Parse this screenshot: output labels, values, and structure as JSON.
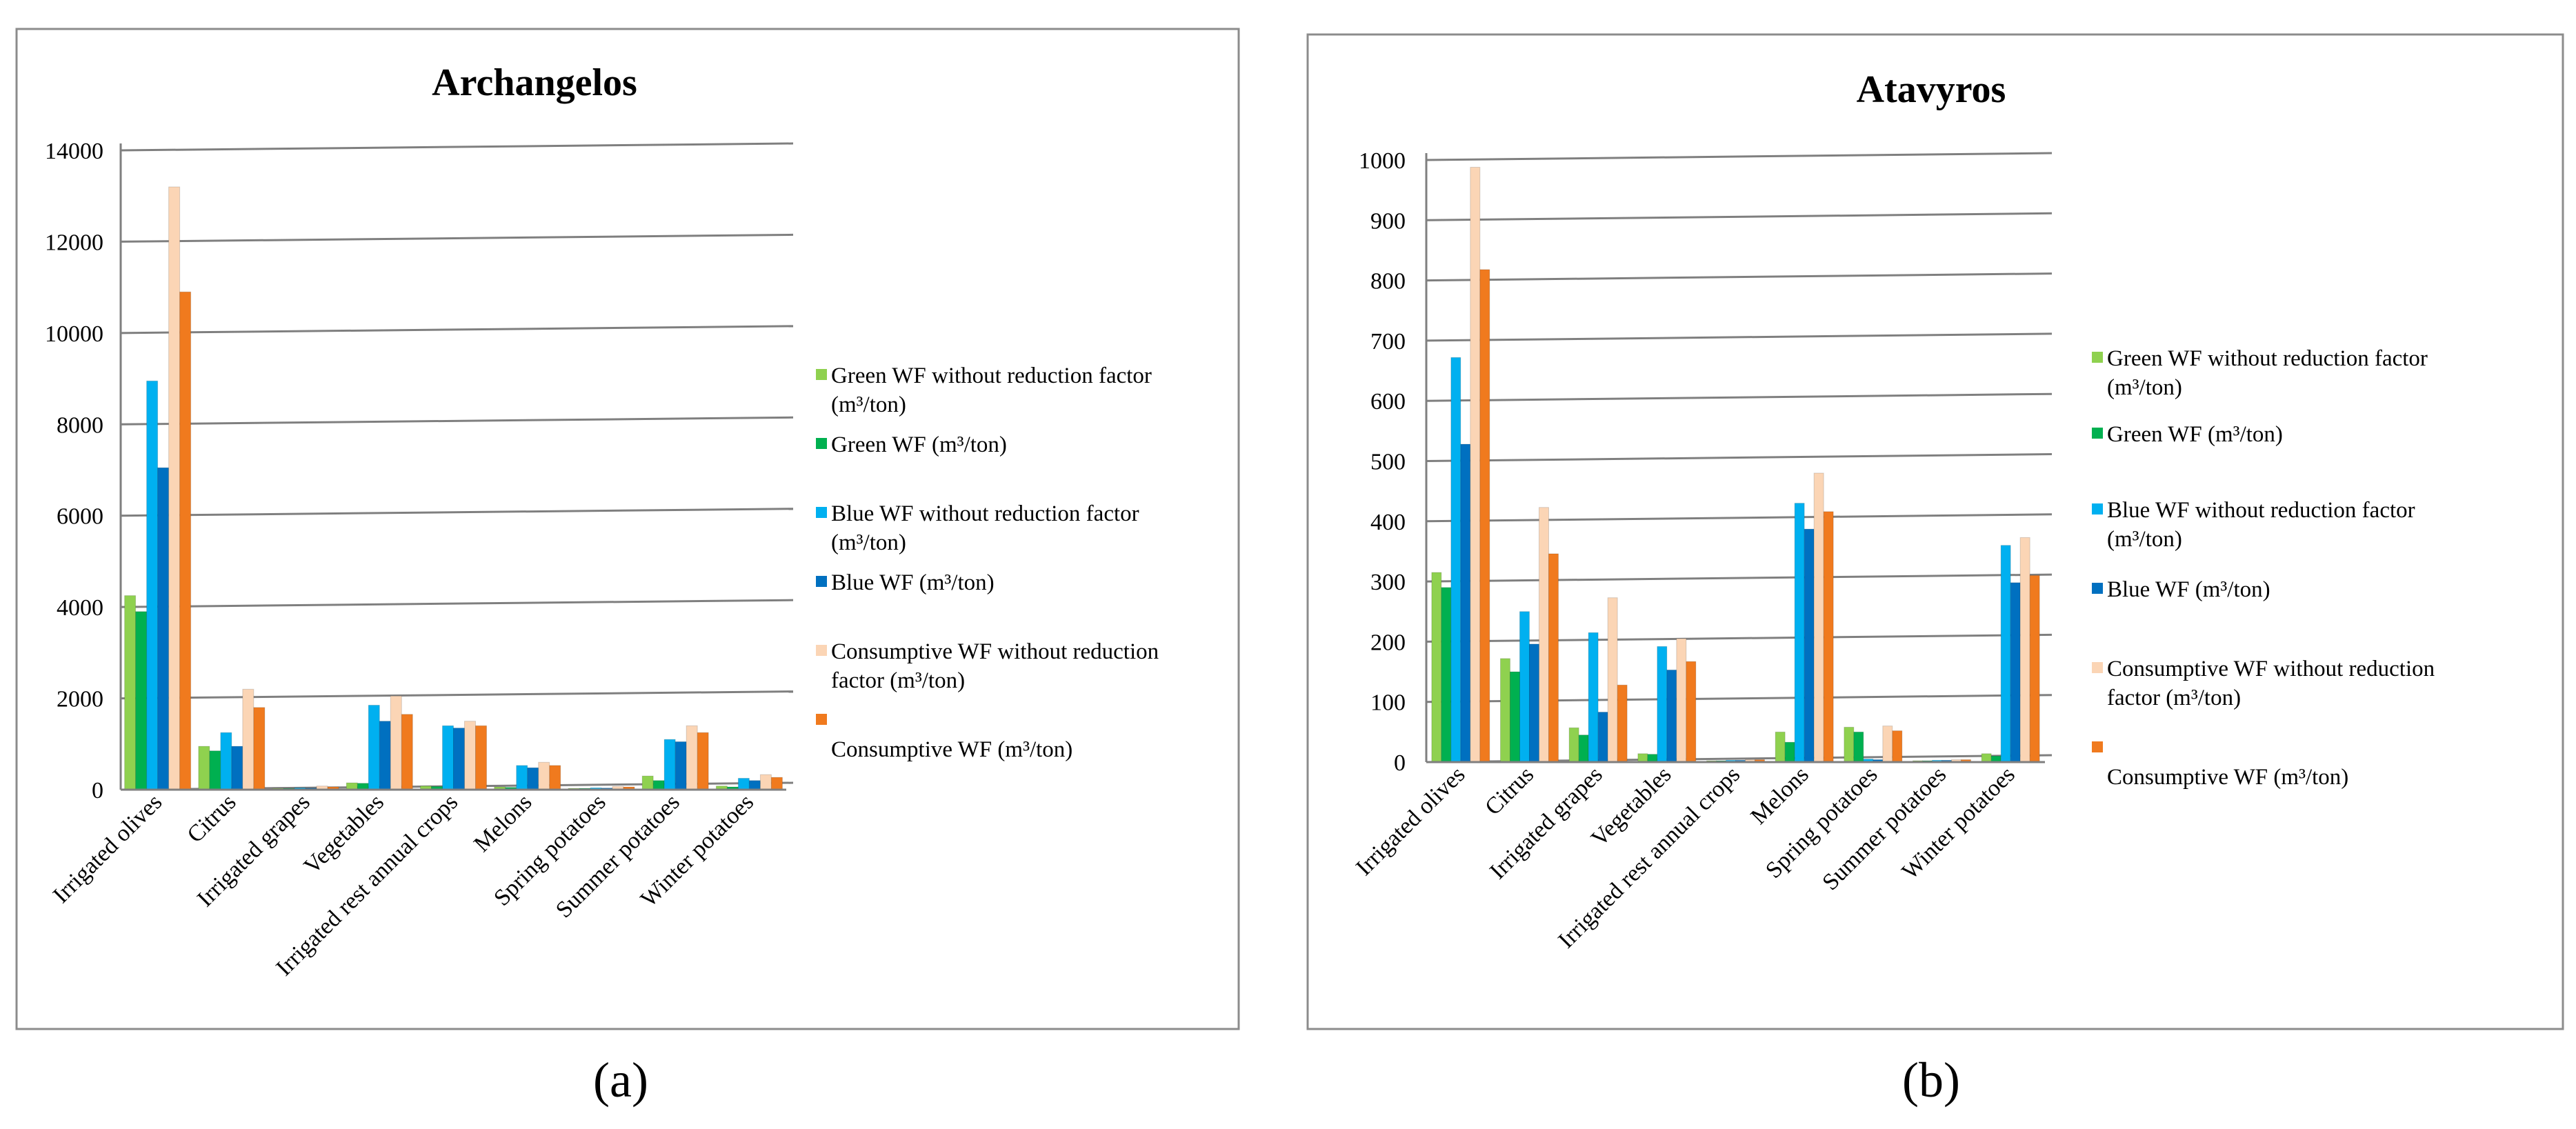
{
  "series_colors": [
    "#8fd14f",
    "#00b050",
    "#00b0f0",
    "#0070c0",
    "#fbd5b5",
    "#f07a1e"
  ],
  "panel_labels": [
    "(a)",
    "(b)"
  ],
  "chart_data": [
    {
      "type": "bar",
      "title": "Archangelos",
      "xlabel": "",
      "ylabel": "",
      "ylim": [
        0,
        14000
      ],
      "yticks": [
        0,
        2000,
        4000,
        6000,
        8000,
        10000,
        12000,
        14000
      ],
      "categories": [
        "Irrigated olives",
        "Citrus",
        "Irrigated grapes",
        "Vegetables",
        "Irrigated rest annual crops",
        "Melons",
        "Spring potatoes",
        "Summer potatoes",
        "Winter potatoes"
      ],
      "legend_position": "right",
      "series": [
        {
          "name": "Green WF without reduction factor (m³/ton)",
          "values": [
            4250,
            950,
            30,
            150,
            80,
            60,
            30,
            300,
            80
          ]
        },
        {
          "name": "Green WF (m³/ton)",
          "values": [
            3900,
            850,
            25,
            140,
            70,
            50,
            25,
            200,
            60
          ]
        },
        {
          "name": "Blue WF without reduction factor (m³/ton)",
          "values": [
            8950,
            1250,
            40,
            1850,
            1400,
            530,
            40,
            1100,
            250
          ]
        },
        {
          "name": "Blue WF (m³/ton)",
          "values": [
            7050,
            950,
            35,
            1500,
            1350,
            480,
            35,
            1050,
            200
          ]
        },
        {
          "name": "Consumptive WF without reduction factor (m³/ton)",
          "values": [
            13200,
            2200,
            80,
            2050,
            1500,
            600,
            70,
            1400,
            330
          ]
        },
        {
          "name": "Consumptive WF (m³/ton)",
          "values": [
            10900,
            1800,
            60,
            1650,
            1400,
            530,
            60,
            1250,
            270
          ]
        }
      ]
    },
    {
      "type": "bar",
      "title": "Atavyros",
      "xlabel": "",
      "ylabel": "",
      "ylim": [
        0,
        1000
      ],
      "yticks": [
        0,
        100,
        200,
        300,
        400,
        500,
        600,
        700,
        800,
        900,
        1000
      ],
      "categories": [
        "Irrigated olives",
        "Citrus",
        "Irrigated grapes",
        "Vegetables",
        "Irrigated rest annual crops",
        "Melons",
        "Spring potatoes",
        "Summer potatoes",
        "Winter potatoes"
      ],
      "legend_position": "right",
      "series": [
        {
          "name": "Green WF without reduction factor (m³/ton)",
          "values": [
            315,
            172,
            57,
            14,
            2,
            50,
            58,
            2,
            14
          ]
        },
        {
          "name": "Green WF (m³/ton)",
          "values": [
            290,
            150,
            45,
            13,
            2,
            33,
            50,
            2,
            10
          ]
        },
        {
          "name": "Blue WF without reduction factor (m³/ton)",
          "values": [
            672,
            250,
            215,
            192,
            3,
            430,
            5,
            3,
            360
          ]
        },
        {
          "name": "Blue WF (m³/ton)",
          "values": [
            528,
            196,
            83,
            153,
            3,
            387,
            4,
            3,
            298
          ]
        },
        {
          "name": "Consumptive WF without reduction factor (m³/ton)",
          "values": [
            988,
            423,
            273,
            205,
            4,
            480,
            60,
            4,
            373
          ]
        },
        {
          "name": "Consumptive WF (m³/ton)",
          "values": [
            818,
            346,
            128,
            167,
            4,
            416,
            52,
            4,
            310
          ]
        }
      ]
    }
  ]
}
